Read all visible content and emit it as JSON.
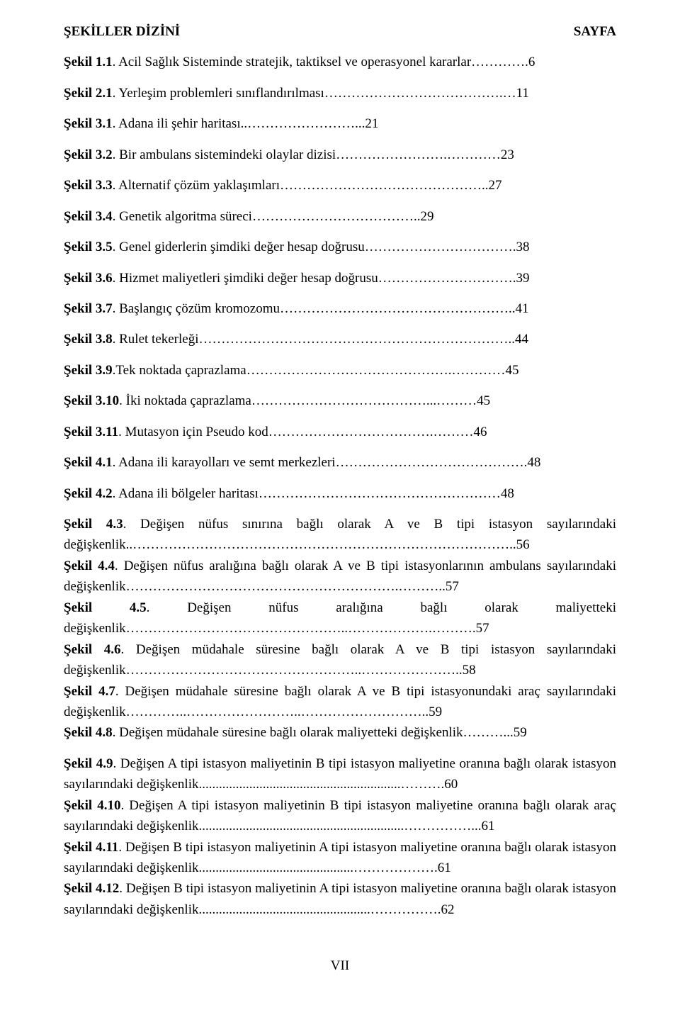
{
  "header": {
    "left": "ŞEKİLLER DİZİNİ",
    "right": "SAYFA"
  },
  "entries": [
    {
      "label": "Şekil 1.1",
      "text": ". Acil Sağlık Sisteminde stratejik, taktiksel ve operasyonel kararlar………….6",
      "tight": false
    },
    {
      "label": "Şekil 2.1",
      "text": ". Yerleşim problemleri sınıflandırılması………………………………….…11",
      "tight": false
    },
    {
      "label": "Şekil 3.1",
      "text": ". Adana ili şehir haritası..……………………...21",
      "tight": false
    },
    {
      "label": "Şekil 3.2",
      "text": ". Bir ambulans sistemindeki olaylar dizisi…………………….…………23",
      "tight": false
    },
    {
      "label": "Şekil 3.3",
      "text": ". Alternatif çözüm yaklaşımları………………………………………..27",
      "tight": false
    },
    {
      "label": "Şekil 3.4",
      "text": ". Genetik algoritma süreci………………………………..29",
      "tight": false
    },
    {
      "label": "Şekil 3.5",
      "text": ". Genel giderlerin şimdiki değer hesap doğrusu…………………………….38",
      "tight": false
    },
    {
      "label": "Şekil 3.6",
      "text": ". Hizmet maliyetleri  şimdiki değer hesap doğrusu………………………….39",
      "tight": false
    },
    {
      "label": "Şekil 3.7",
      "text": ". Başlangıç çözüm kromozomu……………………………………………..41",
      "tight": false
    },
    {
      "label": "Şekil 3.8",
      "text": ". Rulet tekerleği……………………………………………………………..44",
      "tight": false
    },
    {
      "label": "Şekil 3.9",
      "text": ".Tek noktada çaprazlama……………………………………….…………45",
      "tight": false
    },
    {
      "label": "Şekil 3.10",
      "text": ". İki noktada çaprazlama…………………………………...………45",
      "tight": false
    },
    {
      "label": "Şekil 3.11",
      "text": ". Mutasyon için Pseudo kod……………………………….………46",
      "tight": false
    },
    {
      "label": "Şekil 4.1",
      "text": ". Adana ili karayolları ve semt merkezleri…………………………………….48",
      "tight": false
    },
    {
      "label": "Şekil 4.2",
      "text": ". Adana ili bölgeler haritası………………………………………………48",
      "tight": false
    },
    {
      "label": "Şekil 4.3",
      "text": ". Değişen nüfus sınırına bağlı olarak A ve B tipi istasyon sayılarındaki değişkenlik..…………………………………………………………………………..56",
      "tight": true
    },
    {
      "label": "Şekil 4.4",
      "text": ". Değişen nüfus aralığına bağlı olarak A ve B tipi istasyonlarının ambulans sayılarındaki değişkenlik…………………………………………………….………..57",
      "tight": true
    },
    {
      "label": "Şekil 4.5",
      "text": ". Değişen nüfus aralığına bağlı olarak maliyetteki değişkenlik…………………………………………..……………….……….57",
      "tight": true
    },
    {
      "label": "Şekil 4.6",
      "text": ". Değişen müdahale süresine bağlı olarak A ve B tipi istasyon sayılarındaki değişkenlik……………………………………………..…………………..58",
      "tight": true
    },
    {
      "label": "Şekil 4.7",
      "text": ". Değişen müdahale süresine bağlı olarak A ve B tipi istasyonundaki araç sayılarındaki değişkenlik…………..……………………..………………………..59",
      "tight": true
    },
    {
      "label": "Şekil 4.8",
      "text": ". Değişen müdahale süresine bağlı olarak maliyetteki değişkenlik………...59",
      "tight": false
    },
    {
      "label": "Şekil 4.9",
      "text": ". Değişen A tipi istasyon maliyetinin B tipi istasyon maliyetine oranına bağlı olarak istasyon sayılarındaki değişkenlik............................................................……….60",
      "tight": true
    },
    {
      "label": "Şekil 4.10",
      "text": ". Değişen A tipi istasyon maliyetinin B tipi istasyon maliyetine oranına bağlı olarak araç sayılarındaki değişkenlik.............................................................……………...61",
      "tight": true
    },
    {
      "label": "Şekil 4.11",
      "text": ". Değişen B tipi istasyon maliyetinin A tipi istasyon maliyetine oranına bağlı olarak istasyon sayılarındaki değişkenlik..............................................……………….61",
      "tight": true
    },
    {
      "label": "Şekil 4.12",
      "text": ". Değişen B tipi istasyon maliyetinin A tipi istasyon maliyetine oranına bağlı olarak istasyon sayılarındaki değişkenlik...................................................…………….62",
      "tight": true
    }
  ],
  "pageNumber": "VII"
}
